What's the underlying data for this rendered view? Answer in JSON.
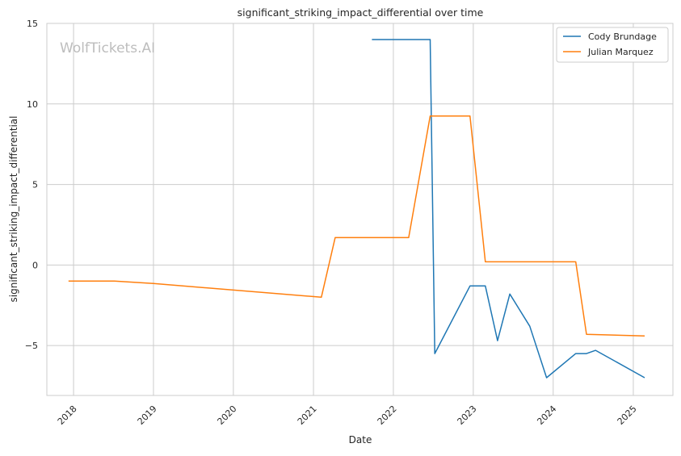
{
  "chart_data": {
    "type": "line",
    "title": "significant_striking_impact_differential over time",
    "xlabel": "Date",
    "ylabel": "significant_striking_impact_differential",
    "watermark": "WolfTickets.AI",
    "xlim": [
      "2017-09-01",
      "2025-07-01"
    ],
    "ylim": [
      -8.1,
      15
    ],
    "x_ticks": [
      {
        "label": "2018",
        "date": "2018-01-01"
      },
      {
        "label": "2019",
        "date": "2019-01-01"
      },
      {
        "label": "2020",
        "date": "2020-01-01"
      },
      {
        "label": "2021",
        "date": "2021-01-01"
      },
      {
        "label": "2022",
        "date": "2022-01-01"
      },
      {
        "label": "2023",
        "date": "2023-01-01"
      },
      {
        "label": "2024",
        "date": "2024-01-01"
      },
      {
        "label": "2025",
        "date": "2025-01-01"
      }
    ],
    "y_ticks": [
      {
        "label": "−5",
        "value": -5
      },
      {
        "label": "0",
        "value": 0
      },
      {
        "label": "5",
        "value": 5
      },
      {
        "label": "10",
        "value": 10
      },
      {
        "label": "15",
        "value": 15
      }
    ],
    "grid": true,
    "legend_position": "top-right",
    "series": [
      {
        "name": "Cody Brundage",
        "color": "#1f77b4",
        "x": [
          "2021-09-25",
          "2022-06-18",
          "2022-07-09",
          "2022-12-17",
          "2023-02-25",
          "2023-04-22",
          "2023-06-17",
          "2023-09-16",
          "2023-12-02",
          "2024-04-13",
          "2024-06-01",
          "2024-07-13",
          "2025-02-22"
        ],
        "y": [
          14.0,
          14.0,
          -5.5,
          -1.3,
          -1.3,
          -4.7,
          -1.8,
          -3.8,
          -7.0,
          -5.5,
          -5.5,
          -5.3,
          -7.0
        ]
      },
      {
        "name": "Julian Marquez",
        "color": "#ff7f0e",
        "x": [
          "2017-12-09",
          "2018-07-06",
          "2019-01-01",
          "2021-02-06",
          "2021-04-10",
          "2022-03-12",
          "2022-06-18",
          "2022-12-17",
          "2023-02-25",
          "2024-04-13",
          "2024-06-01",
          "2025-02-22"
        ],
        "y": [
          -1.0,
          -1.0,
          -1.15,
          -2.0,
          1.7,
          1.7,
          9.25,
          9.25,
          0.2,
          0.2,
          -4.3,
          -4.4
        ]
      }
    ]
  }
}
